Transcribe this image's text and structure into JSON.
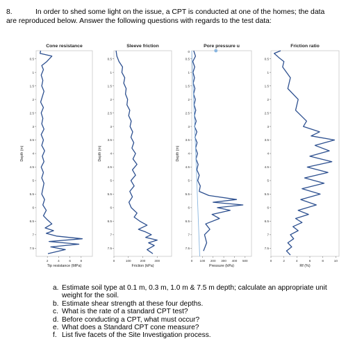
{
  "question": {
    "number": "8.",
    "intro_line1": "In order to shed some light on the issue, a CPT is conducted at one of the homes; the data",
    "intro_line2": "are reproduced below. Answer the following questions with regards to the test data:"
  },
  "depth_ticks": [
    "0.5",
    "1",
    "1.5",
    "2",
    "2.5",
    "3",
    "3.5",
    "4",
    "4.5",
    "5",
    "5.5",
    "6",
    "6.5",
    "7",
    "7.5"
  ],
  "depth_label": "Depth (m)",
  "panels": [
    {
      "title": "Cone resistance",
      "xlabel": "Tip resistance (MPa)",
      "x_ticks": [
        "2",
        "4",
        "6",
        "8"
      ],
      "show_zero_tick": false,
      "show_depth_label": true
    },
    {
      "title": "Sleeve friction",
      "xlabel": "Friction (kPa)",
      "x_ticks": [
        "0",
        "100",
        "200",
        "300"
      ],
      "show_zero_tick": false,
      "show_depth_label": true
    },
    {
      "title": "Pore pressure u",
      "xlabel": "Pressure (kPa)",
      "x_ticks": [
        "0",
        "100",
        "200",
        "300",
        "400",
        "500"
      ],
      "show_zero_tick": true,
      "show_depth_label": true
    },
    {
      "title": "Friction ratio",
      "xlabel": "Rf (%)",
      "x_ticks": [
        "0",
        "2",
        "4",
        "6",
        "8",
        "10"
      ],
      "show_zero_tick": false,
      "show_depth_label": false
    }
  ],
  "chart_data": [
    {
      "type": "line",
      "title": "Cone resistance",
      "xlabel": "Tip resistance (MPa)",
      "ylabel": "Depth (m)",
      "xlim": [
        0,
        10
      ],
      "ylim": [
        7.8,
        0.2
      ],
      "y_inverted": true,
      "grid": false,
      "series": [
        {
          "color": "#2c4f8f",
          "x": [
            0.8,
            0.7,
            2.8,
            1.9,
            1.0,
            1.3,
            0.9,
            1.2,
            1.0,
            1.4,
            1.1,
            0.8,
            1.3,
            0.9,
            1.2,
            1.0,
            1.4,
            0.9,
            1.3,
            1.0,
            1.5,
            1.1,
            1.4,
            0.9,
            1.3,
            1.0,
            1.4,
            1.2,
            1.0,
            1.5,
            1.2,
            1.8,
            1.3,
            2.0,
            2.8,
            1.6,
            3.1,
            1.8,
            3.6,
            8.2,
            2.3,
            7.6,
            2.6,
            5.2,
            2.1
          ],
          "y": [
            0.2,
            0.3,
            0.4,
            0.6,
            0.75,
            0.9,
            1.1,
            1.3,
            1.5,
            1.7,
            1.9,
            2.1,
            2.3,
            2.5,
            2.7,
            2.9,
            3.1,
            3.3,
            3.5,
            3.7,
            3.9,
            4.1,
            4.3,
            4.5,
            4.7,
            4.9,
            5.1,
            5.3,
            5.5,
            5.7,
            5.9,
            6.1,
            6.3,
            6.45,
            6.6,
            6.75,
            6.85,
            6.95,
            7.05,
            7.15,
            7.25,
            7.35,
            7.45,
            7.55,
            7.7
          ]
        }
      ]
    },
    {
      "type": "line",
      "title": "Sleeve friction",
      "xlabel": "Friction (kPa)",
      "ylabel": "Depth (m)",
      "xlim": [
        0,
        400
      ],
      "ylim": [
        7.8,
        0.2
      ],
      "y_inverted": true,
      "grid": false,
      "series": [
        {
          "color": "#2c4f8f",
          "x": [
            15,
            20,
            35,
            60,
            55,
            75,
            68,
            85,
            80,
            95,
            90,
            110,
            102,
            120,
            112,
            130,
            118,
            138,
            125,
            150,
            132,
            160,
            128,
            150,
            118,
            140,
            110,
            128,
            104,
            120,
            160,
            140,
            180,
            230,
            170,
            220,
            260,
            220,
            300,
            240,
            280,
            230,
            270
          ],
          "y": [
            0.2,
            0.4,
            0.6,
            0.8,
            1.0,
            1.2,
            1.4,
            1.6,
            1.8,
            2.0,
            2.2,
            2.4,
            2.6,
            2.8,
            3.0,
            3.2,
            3.4,
            3.6,
            3.8,
            4.0,
            4.2,
            4.4,
            4.6,
            4.8,
            5.0,
            5.2,
            5.4,
            5.6,
            5.8,
            6.0,
            6.2,
            6.35,
            6.5,
            6.65,
            6.8,
            6.9,
            7.0,
            7.1,
            7.2,
            7.3,
            7.4,
            7.55,
            7.7
          ]
        }
      ]
    },
    {
      "type": "line",
      "title": "Pore pressure u",
      "xlabel": "Pressure (kPa)",
      "ylabel": "Depth (m)",
      "xlim": [
        0,
        560
      ],
      "ylim": [
        7.8,
        0.2
      ],
      "y_inverted": true,
      "grid": false,
      "series": [
        {
          "color": "#2c4f8f",
          "x": [
            18,
            35,
            10,
            28,
            12,
            26,
            14,
            30,
            16,
            34,
            22,
            38,
            24,
            42,
            26,
            48,
            30,
            50,
            36,
            54,
            40,
            60,
            48,
            70,
            56,
            80,
            70,
            160,
            420,
            200,
            480,
            240,
            360,
            190,
            260,
            130,
            170,
            120,
            140,
            110
          ],
          "y": [
            0.2,
            0.4,
            0.6,
            0.8,
            1.0,
            1.2,
            1.4,
            1.6,
            1.8,
            2.0,
            2.2,
            2.4,
            2.6,
            2.8,
            3.0,
            3.2,
            3.4,
            3.6,
            3.8,
            4.0,
            4.2,
            4.4,
            4.6,
            4.8,
            5.0,
            5.2,
            5.4,
            5.55,
            5.7,
            5.8,
            5.9,
            6.0,
            6.1,
            6.25,
            6.4,
            6.6,
            6.8,
            7.0,
            7.3,
            7.6
          ]
        },
        {
          "color": "#8ab6e0",
          "x": [
            0,
            75
          ],
          "y": [
            0.2,
            7.8
          ]
        }
      ]
    },
    {
      "type": "line",
      "title": "Friction ratio",
      "xlabel": "Rf (%)",
      "ylabel": "",
      "xlim": [
        0,
        10.5
      ],
      "ylim": [
        7.8,
        0.2
      ],
      "y_inverted": true,
      "grid": false,
      "series": [
        {
          "color": "#2c4f8f",
          "x": [
            1.5,
            0.5,
            1.2,
            2.0,
            1.8,
            3.0,
            2.6,
            4.2,
            3.8,
            5.5,
            5.0,
            7.5,
            6.2,
            9.8,
            6.8,
            9.0,
            6.0,
            9.4,
            5.6,
            8.8,
            5.2,
            8.2,
            4.8,
            7.6,
            4.6,
            7.0,
            4.2,
            5.8,
            3.8,
            4.8,
            3.4,
            4.2,
            3.0,
            3.5,
            2.6,
            3.2,
            2.4,
            3.0
          ],
          "y": [
            0.2,
            0.3,
            0.45,
            0.6,
            0.8,
            1.2,
            1.6,
            2.0,
            2.4,
            2.8,
            3.0,
            3.2,
            3.35,
            3.5,
            3.7,
            3.9,
            4.1,
            4.3,
            4.5,
            4.7,
            4.9,
            5.1,
            5.3,
            5.5,
            5.7,
            5.9,
            6.1,
            6.25,
            6.4,
            6.55,
            6.7,
            6.85,
            7.0,
            7.15,
            7.3,
            7.45,
            7.6,
            7.75
          ]
        }
      ]
    }
  ],
  "questions": [
    {
      "label": "a.",
      "lines": [
        "Estimate soil type at 0.1 m, 0.3 m, 1.0 m & 7.5 m depth; calculate an appropriate unit",
        "weight for the soil."
      ]
    },
    {
      "label": "b.",
      "lines": [
        "Estimate shear strength at these four depths."
      ]
    },
    {
      "label": "c.",
      "lines": [
        "What is the rate of a standard CPT test?"
      ]
    },
    {
      "label": "d.",
      "lines": [
        "Before conducting a CPT, what must occur?"
      ]
    },
    {
      "label": "e.",
      "lines": [
        "What does a Standard CPT cone measure?"
      ]
    },
    {
      "label": "f.",
      "lines": [
        "List five facets of the Site Investigation process."
      ]
    }
  ]
}
